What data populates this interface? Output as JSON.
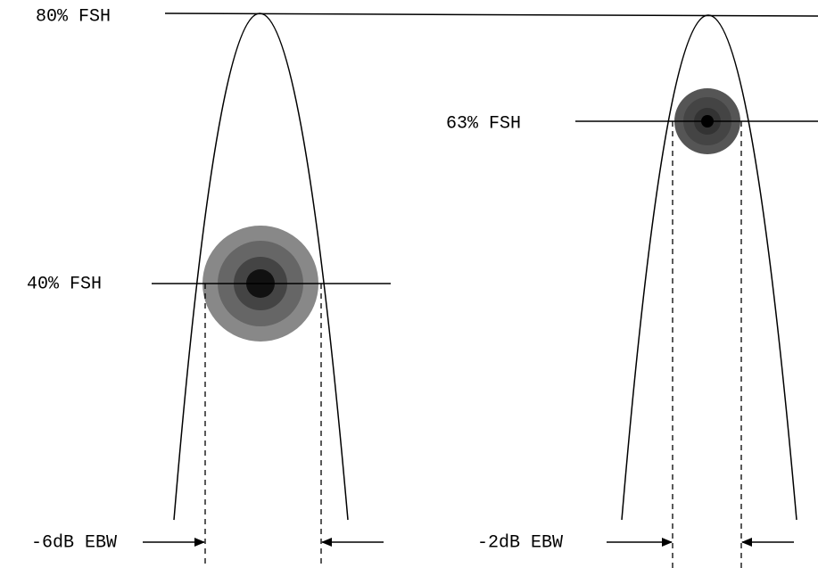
{
  "reference_line": {
    "label": "80% FSH"
  },
  "left_beam": {
    "level_label": "40% FSH",
    "width_label": "-6dB EBW"
  },
  "right_beam": {
    "level_label": "63% FSH",
    "width_label": "-2dB EBW"
  }
}
